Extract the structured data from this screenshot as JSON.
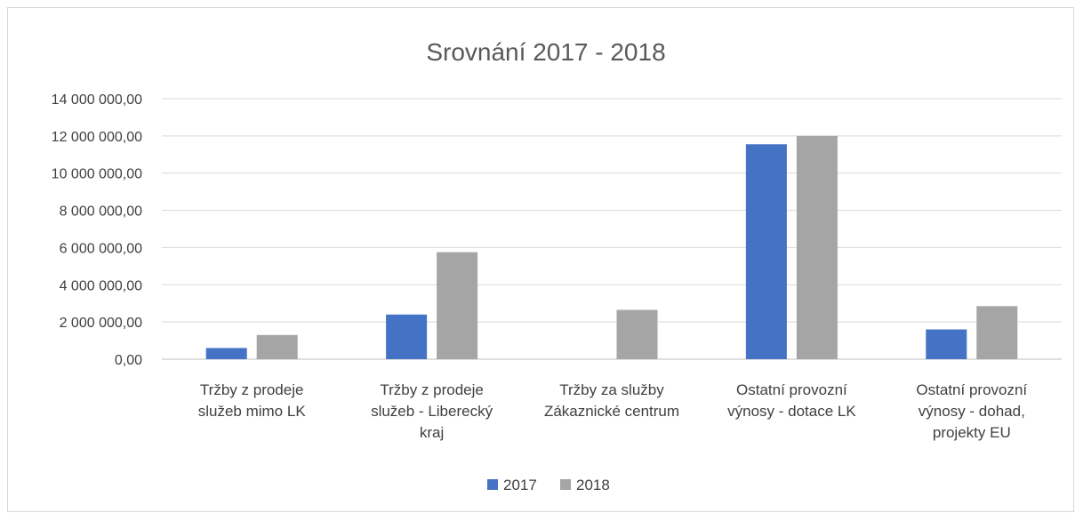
{
  "chart_data": {
    "type": "bar",
    "title": "Srovnání 2017 - 2018",
    "xlabel": "",
    "ylabel": "",
    "ylim": [
      0,
      14000000
    ],
    "yticks": [
      0,
      2000000,
      4000000,
      6000000,
      8000000,
      10000000,
      12000000,
      14000000
    ],
    "ytick_labels": [
      "0,00",
      "2 000 000,00",
      "4 000 000,00",
      "6 000 000,00",
      "8 000 000,00",
      "10 000 000,00",
      "12 000 000,00",
      "14 000 000,00"
    ],
    "grid": true,
    "legend_position": "bottom",
    "categories": [
      [
        "Tržby z prodeje",
        "služeb mimo LK"
      ],
      [
        "Tržby z prodeje",
        "služeb - Liberecký",
        "kraj"
      ],
      [
        "Tržby za služby",
        "Zákaznické centrum"
      ],
      [
        "Ostatní provozní",
        "výnosy - dotace LK"
      ],
      [
        "Ostatní provozní",
        "výnosy - dohad,",
        "projekty EU"
      ]
    ],
    "series": [
      {
        "name": "2017",
        "color": "#4472c4",
        "values": [
          600000,
          2400000,
          0,
          11550000,
          1600000
        ]
      },
      {
        "name": "2018",
        "color": "#a5a5a5",
        "values": [
          1300000,
          5750000,
          2650000,
          12000000,
          2850000
        ]
      }
    ]
  }
}
